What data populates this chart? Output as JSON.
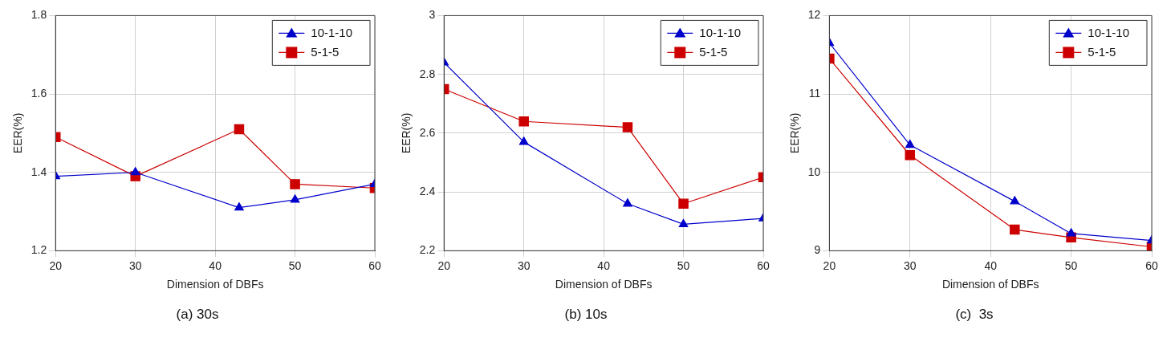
{
  "chart_data": [
    {
      "type": "line",
      "xlabel": "Dimension of DBFs",
      "ylabel": "EER(%)",
      "annotations": [
        "(a) 30s"
      ],
      "x": [
        20,
        30,
        43,
        50,
        60
      ],
      "xlim": [
        20,
        60
      ],
      "xticks": [
        20,
        30,
        40,
        50,
        60
      ],
      "ylim": [
        1.2,
        1.8
      ],
      "yticks": [
        1.2,
        1.4,
        1.6,
        1.8
      ],
      "grid": true,
      "legend": "top right",
      "series": [
        {
          "name": "10-1-10",
          "color": "#0000cc",
          "marker": "triangle",
          "values": [
            1.39,
            1.4,
            1.31,
            1.33,
            1.37
          ]
        },
        {
          "name": "5-1-5",
          "color": "#cc0000",
          "marker": "square",
          "values": [
            1.49,
            1.39,
            1.51,
            1.37,
            1.36
          ]
        }
      ]
    },
    {
      "type": "line",
      "xlabel": "Dimension of DBFs",
      "ylabel": "EER(%)",
      "annotations": [
        "(b) 10s"
      ],
      "x": [
        20,
        30,
        43,
        50,
        60
      ],
      "xlim": [
        20,
        60
      ],
      "xticks": [
        20,
        30,
        40,
        50,
        60
      ],
      "ylim": [
        2.2,
        3
      ],
      "yticks": [
        2.2,
        2.4,
        2.6,
        2.8,
        3
      ],
      "grid": true,
      "legend": "top right",
      "series": [
        {
          "name": "10-1-10",
          "color": "#0000cc",
          "marker": "triangle",
          "values": [
            2.84,
            2.57,
            2.36,
            2.29,
            2.31
          ]
        },
        {
          "name": "5-1-5",
          "color": "#cc0000",
          "marker": "square",
          "values": [
            2.75,
            2.64,
            2.62,
            2.36,
            2.45
          ]
        }
      ]
    },
    {
      "type": "line",
      "xlabel": "Dimension of DBFs",
      "ylabel": "EER(%)",
      "annotations": [
        "(c)  3s"
      ],
      "x": [
        20,
        30,
        43,
        50,
        60
      ],
      "xlim": [
        20,
        60
      ],
      "xticks": [
        20,
        30,
        40,
        50,
        60
      ],
      "ylim": [
        9,
        12
      ],
      "yticks": [
        9,
        10,
        11,
        12
      ],
      "grid": true,
      "legend": "top right",
      "series": [
        {
          "name": "10-1-10",
          "color": "#0000cc",
          "marker": "triangle",
          "values": [
            11.65,
            10.35,
            9.63,
            9.22,
            9.13
          ]
        },
        {
          "name": "5-1-5",
          "color": "#cc0000",
          "marker": "square",
          "values": [
            11.45,
            10.22,
            9.27,
            9.17,
            9.05
          ]
        }
      ]
    }
  ]
}
